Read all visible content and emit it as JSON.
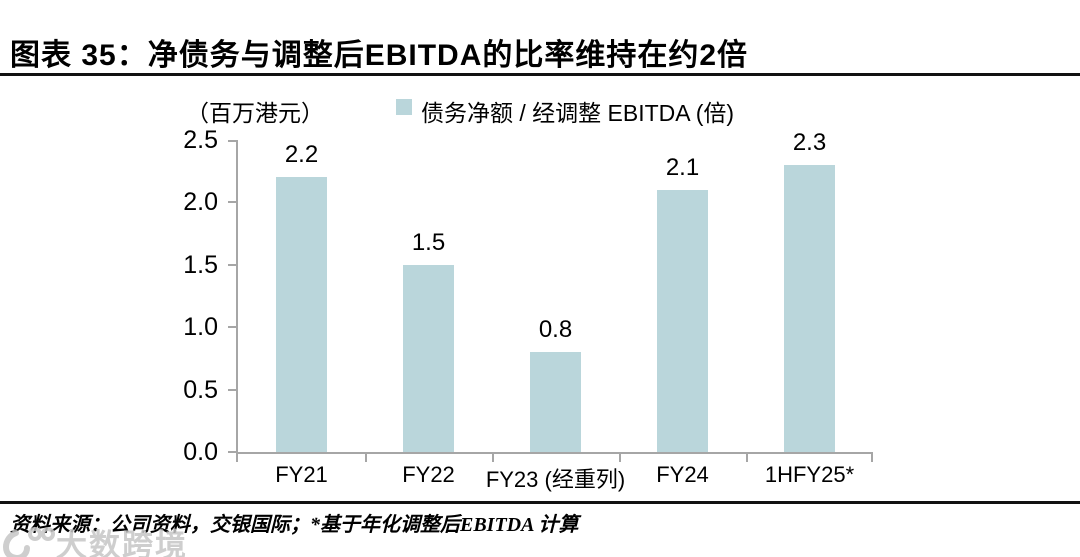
{
  "title": "图表 35：净债务与调整后EBITDA的比率维持在约2倍",
  "unit_label": "（百万港元）",
  "legend": {
    "label": "债务净额 / 经调整 EBITDA (倍)",
    "swatch_color": "#bad6db"
  },
  "footer": {
    "source": "资料来源：公司资料，交银国际；*基于年化调整后EBITDA 计算"
  },
  "watermark": {
    "text": "大数跨境"
  },
  "chart_data": {
    "type": "bar",
    "categories": [
      "FY21",
      "FY22",
      "FY23 (经重列)",
      "FY24",
      "1HFY25*"
    ],
    "values": [
      2.2,
      1.5,
      0.8,
      2.1,
      2.3
    ],
    "value_labels": [
      "2.2",
      "1.5",
      "0.8",
      "2.1",
      "2.3"
    ],
    "title": "债务净额 / 经调整 EBITDA (倍)",
    "xlabel": "",
    "ylabel": "（百万港元）",
    "ylim": [
      0,
      2.5
    ],
    "ytick_step": 0.5,
    "yticks": [
      "0.0",
      "0.5",
      "1.0",
      "1.5",
      "2.0",
      "2.5"
    ],
    "bar_color": "#bad6db",
    "axis_color": "#a6a6a6",
    "legend_position": "top",
    "grid": false
  }
}
